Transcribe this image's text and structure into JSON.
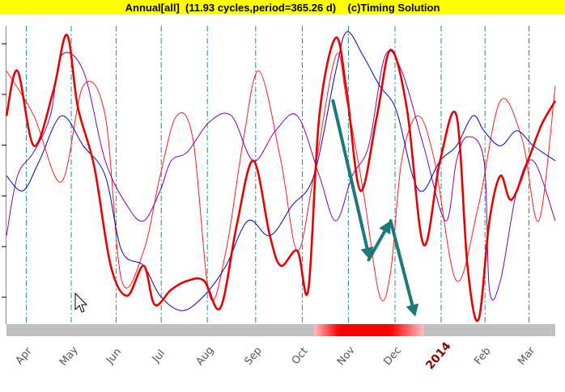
{
  "header": {
    "title": "Annual[all]  (11.93 cycles,period=365.26 d)    (c)Timing Solution"
  },
  "chart_data": {
    "type": "line",
    "title": "Annual[all]  (11.93 cycles,period=365.26 d)    (c)Timing Solution",
    "xlabel": "",
    "ylabel": "",
    "x_tick_labels": [
      "Apr",
      "May",
      "Jun",
      "Jul",
      "Aug",
      "Sep",
      "Oct",
      "Nov",
      "Dec",
      "2014",
      "Feb",
      "Mar"
    ],
    "x_tick_fractions": [
      0.036,
      0.118,
      0.2,
      0.282,
      0.366,
      0.454,
      0.539,
      0.623,
      0.708,
      0.792,
      0.872,
      0.952
    ],
    "grid": "vertical dash-dot lines at each month",
    "y_range_normalized": [
      0,
      1
    ],
    "colors": {
      "thick_red": "#e60000",
      "thin_red": "#ff1a1a",
      "purple": "#7a00b4",
      "blue": "#0000c8",
      "grid": "#1e8c8c",
      "arrow": "#1b7a78",
      "timeline_base": "#c0c0c0",
      "timeline_highlight": "#ff0000"
    },
    "series": [
      {
        "style": "thick-red",
        "x": [
          0.0,
          0.02,
          0.05,
          0.085,
          0.11,
          0.13,
          0.16,
          0.19,
          0.22,
          0.25,
          0.27,
          0.3,
          0.33,
          0.36,
          0.39,
          0.42,
          0.45,
          0.48,
          0.5,
          0.53,
          0.55,
          0.57,
          0.6,
          0.62,
          0.645,
          0.675,
          0.7,
          0.73,
          0.76,
          0.79,
          0.82,
          0.84,
          0.86,
          0.88,
          0.9,
          0.92,
          0.95,
          0.975,
          1.0
        ],
        "y": [
          0.7,
          0.85,
          0.6,
          0.78,
          0.97,
          0.73,
          0.53,
          0.2,
          0.1,
          0.2,
          0.07,
          0.12,
          0.15,
          0.15,
          0.06,
          0.34,
          0.55,
          0.3,
          0.2,
          0.25,
          0.12,
          0.7,
          0.96,
          0.78,
          0.45,
          0.7,
          0.92,
          0.72,
          0.27,
          0.55,
          0.7,
          0.2,
          0.02,
          0.35,
          0.5,
          0.42,
          0.55,
          0.67,
          0.75
        ]
      },
      {
        "style": "thin-red",
        "x": [
          0.0,
          0.05,
          0.1,
          0.14,
          0.18,
          0.21,
          0.25,
          0.28,
          0.31,
          0.34,
          0.37,
          0.4,
          0.43,
          0.46,
          0.5,
          0.53,
          0.56,
          0.6,
          0.62,
          0.65,
          0.68,
          0.7,
          0.72,
          0.75,
          0.78,
          0.82,
          0.86,
          0.9,
          0.94,
          0.97,
          1.0
        ],
        "y": [
          0.85,
          0.7,
          0.48,
          0.8,
          0.7,
          0.15,
          0.25,
          0.5,
          0.7,
          0.62,
          0.1,
          0.25,
          0.6,
          0.85,
          0.55,
          0.25,
          0.5,
          0.9,
          0.75,
          0.45,
          0.1,
          0.18,
          0.55,
          0.7,
          0.55,
          0.15,
          0.4,
          0.75,
          0.62,
          0.35,
          0.8
        ]
      },
      {
        "style": "purple",
        "x": [
          0.0,
          0.02,
          0.05,
          0.08,
          0.1,
          0.14,
          0.18,
          0.22,
          0.25,
          0.28,
          0.3,
          0.33,
          0.37,
          0.41,
          0.45,
          0.49,
          0.53,
          0.57,
          0.6,
          0.63,
          0.66,
          0.69,
          0.72,
          0.76,
          0.8,
          0.82,
          0.84,
          0.87,
          0.88,
          0.9,
          0.93,
          0.96,
          1.0
        ],
        "y": [
          0.3,
          0.5,
          0.58,
          0.7,
          0.9,
          0.85,
          0.55,
          0.4,
          0.35,
          0.45,
          0.55,
          0.58,
          0.68,
          0.7,
          0.55,
          0.65,
          0.7,
          0.5,
          0.35,
          0.5,
          0.6,
          0.9,
          0.85,
          0.6,
          0.35,
          0.55,
          0.63,
          0.55,
          0.12,
          0.15,
          0.45,
          0.55,
          0.35
        ]
      },
      {
        "style": "blue",
        "x": [
          0.0,
          0.03,
          0.06,
          0.1,
          0.14,
          0.18,
          0.21,
          0.25,
          0.28,
          0.32,
          0.36,
          0.4,
          0.44,
          0.48,
          0.52,
          0.56,
          0.6,
          0.62,
          0.65,
          0.68,
          0.71,
          0.74,
          0.76,
          0.79,
          0.82,
          0.85,
          0.87,
          0.9,
          0.93,
          0.96,
          1.0
        ],
        "y": [
          0.5,
          0.45,
          0.55,
          0.7,
          0.6,
          0.5,
          0.25,
          0.2,
          0.1,
          0.05,
          0.1,
          0.2,
          0.35,
          0.3,
          0.4,
          0.5,
          0.85,
          0.98,
          0.9,
          0.8,
          0.72,
          0.5,
          0.45,
          0.55,
          0.6,
          0.7,
          0.65,
          0.6,
          0.65,
          0.6,
          0.55
        ]
      }
    ],
    "annotations": [
      {
        "type": "arrow",
        "from": [
          0.595,
          0.75
        ],
        "to": [
          0.662,
          0.22
        ]
      },
      {
        "type": "arrow",
        "from": [
          0.66,
          0.22
        ],
        "to": [
          0.7,
          0.35
        ]
      },
      {
        "type": "arrow",
        "from": [
          0.7,
          0.35
        ],
        "to": [
          0.745,
          0.03
        ]
      }
    ],
    "timeline": {
      "highlight_start": 0.56,
      "highlight_end": 0.76,
      "core_start": 0.605,
      "core_end": 0.7
    }
  }
}
